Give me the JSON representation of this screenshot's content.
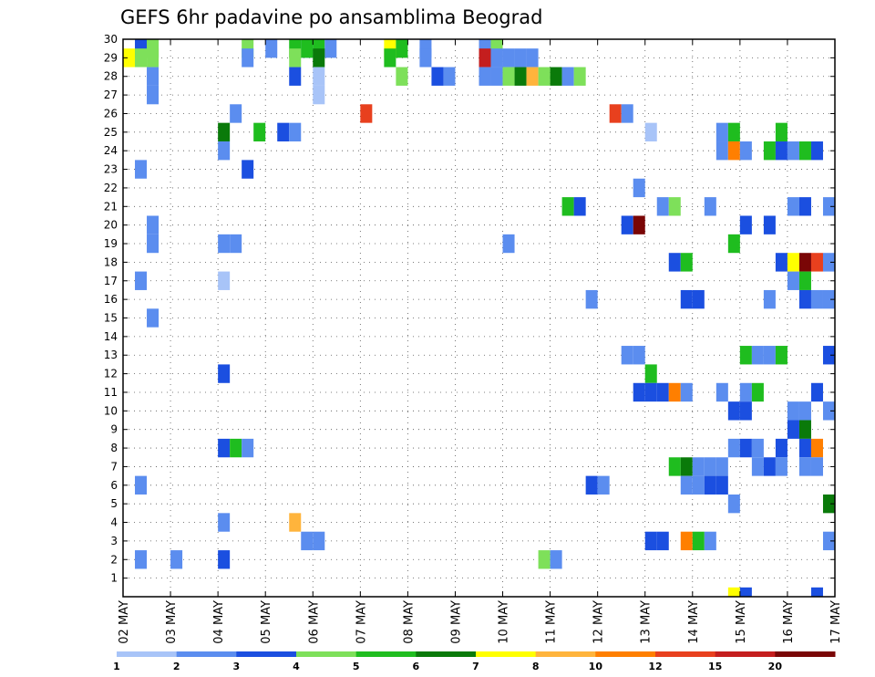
{
  "chart_data": {
    "type": "heatmap",
    "title": "GEFS 6hr padavine po ansamblima Beograd",
    "x_tick_labels": [
      "02 MAY",
      "03 MAY",
      "04 MAY",
      "05 MAY",
      "06 MAY",
      "07 MAY",
      "08 MAY",
      "09 MAY",
      "10 MAY",
      "11 MAY",
      "12 MAY",
      "13 MAY",
      "14 MAY",
      "15 MAY",
      "16 MAY",
      "17 MAY"
    ],
    "y_tick_labels": [
      "1",
      "2",
      "3",
      "4",
      "5",
      "6",
      "7",
      "8",
      "9",
      "10",
      "11",
      "12",
      "13",
      "14",
      "15",
      "16",
      "17",
      "18",
      "19",
      "20",
      "21",
      "22",
      "23",
      "24",
      "25",
      "26",
      "27",
      "28",
      "29",
      "30"
    ],
    "xlim_steps": [
      0,
      60
    ],
    "ylim": [
      0,
      30
    ],
    "grid": true,
    "colorbar": {
      "levels": [
        1,
        2,
        3,
        4,
        5,
        6,
        7,
        8,
        10,
        12,
        15,
        20
      ],
      "tick_labels": [
        "1",
        "2",
        "3",
        "4",
        "5",
        "6",
        "7",
        "8",
        "10",
        "12",
        "15",
        "20"
      ],
      "colors": [
        "#a8c4f8",
        "#5b8def",
        "#1b4fe0",
        "#7ee05a",
        "#1fbd1f",
        "#0a7a0a",
        "#ffff00",
        "#ffb43c",
        "#ff7f00",
        "#e8401e",
        "#c41e1e",
        "#7a0606"
      ]
    },
    "cells": [
      [
        1,
        30,
        2
      ],
      [
        2,
        30,
        4
      ],
      [
        0,
        29,
        6
      ],
      [
        1,
        29,
        3
      ],
      [
        2,
        29,
        3
      ],
      [
        2,
        30,
        3
      ],
      [
        22,
        30,
        6
      ],
      [
        23,
        30,
        4
      ],
      [
        22,
        29,
        4
      ],
      [
        25,
        30,
        1
      ],
      [
        25,
        29,
        1
      ],
      [
        27,
        28,
        1
      ],
      [
        2,
        28,
        1
      ],
      [
        2,
        27,
        1
      ],
      [
        10,
        30,
        3
      ],
      [
        10,
        29,
        1
      ],
      [
        15,
        30,
        1
      ],
      [
        16,
        30,
        4
      ],
      [
        14,
        30,
        4
      ],
      [
        15,
        30,
        4
      ],
      [
        17,
        30,
        1
      ],
      [
        12,
        30,
        1
      ],
      [
        14,
        29,
        3
      ],
      [
        16,
        29,
        5
      ],
      [
        14,
        28,
        2
      ],
      [
        23,
        28,
        3
      ],
      [
        26,
        28,
        2
      ],
      [
        16,
        28,
        0
      ],
      [
        16,
        27,
        0
      ],
      [
        20,
        26,
        9
      ],
      [
        30,
        30,
        1
      ],
      [
        31,
        30,
        3
      ],
      [
        30,
        29,
        10
      ],
      [
        31,
        29,
        1
      ],
      [
        32,
        29,
        1
      ],
      [
        33,
        29,
        1
      ],
      [
        34,
        29,
        1
      ],
      [
        30,
        28,
        1
      ],
      [
        31,
        28,
        1
      ],
      [
        32,
        28,
        3
      ],
      [
        33,
        28,
        5
      ],
      [
        34,
        28,
        7
      ],
      [
        35,
        28,
        3
      ],
      [
        36,
        28,
        5
      ],
      [
        37,
        28,
        1
      ],
      [
        38,
        28,
        3
      ],
      [
        9,
        26,
        1
      ],
      [
        41,
        26,
        9
      ],
      [
        42,
        26,
        1
      ],
      [
        8,
        25,
        5
      ],
      [
        11,
        25,
        4
      ],
      [
        13,
        25,
        2
      ],
      [
        14,
        25,
        1
      ],
      [
        44,
        25,
        0
      ],
      [
        8,
        24,
        1
      ],
      [
        50,
        25,
        1
      ],
      [
        51,
        25,
        4
      ],
      [
        55,
        25,
        4
      ],
      [
        50,
        24,
        1
      ],
      [
        51,
        24,
        8
      ],
      [
        52,
        24,
        1
      ],
      [
        54,
        24,
        4
      ],
      [
        55,
        24,
        2
      ],
      [
        56,
        24,
        1
      ],
      [
        57,
        24,
        4
      ],
      [
        58,
        24,
        2
      ],
      [
        1,
        23,
        1
      ],
      [
        10,
        23,
        2
      ],
      [
        43,
        22,
        1
      ],
      [
        37,
        21,
        4
      ],
      [
        38,
        21,
        2
      ],
      [
        45,
        21,
        1
      ],
      [
        46,
        21,
        3
      ],
      [
        49,
        21,
        1
      ],
      [
        56,
        21,
        1
      ],
      [
        57,
        21,
        2
      ],
      [
        59,
        21,
        1
      ],
      [
        2,
        20,
        1
      ],
      [
        42,
        20,
        2
      ],
      [
        43,
        20,
        11
      ],
      [
        52,
        20,
        2
      ],
      [
        54,
        20,
        2
      ],
      [
        2,
        19,
        1
      ],
      [
        8,
        19,
        1
      ],
      [
        9,
        19,
        1
      ],
      [
        32,
        19,
        1
      ],
      [
        51,
        19,
        4
      ],
      [
        46,
        18,
        2
      ],
      [
        47,
        18,
        4
      ],
      [
        8,
        17,
        0
      ],
      [
        55,
        18,
        2
      ],
      [
        56,
        18,
        6
      ],
      [
        57,
        18,
        11
      ],
      [
        58,
        18,
        9
      ],
      [
        59,
        18,
        1
      ],
      [
        1,
        17,
        1
      ],
      [
        39,
        16,
        1
      ],
      [
        56,
        17,
        1
      ],
      [
        57,
        17,
        4
      ],
      [
        47,
        16,
        2
      ],
      [
        48,
        16,
        2
      ],
      [
        54,
        16,
        1
      ],
      [
        57,
        16,
        2
      ],
      [
        58,
        16,
        1
      ],
      [
        59,
        16,
        1
      ],
      [
        2,
        15,
        1
      ],
      [
        42,
        13,
        1
      ],
      [
        43,
        13,
        1
      ],
      [
        44,
        12,
        4
      ],
      [
        52,
        13,
        4
      ],
      [
        53,
        13,
        1
      ],
      [
        54,
        13,
        1
      ],
      [
        55,
        13,
        4
      ],
      [
        59,
        13,
        2
      ],
      [
        8,
        12,
        2
      ],
      [
        43,
        11,
        2
      ],
      [
        44,
        11,
        2
      ],
      [
        45,
        11,
        2
      ],
      [
        46,
        11,
        8
      ],
      [
        47,
        11,
        1
      ],
      [
        50,
        11,
        1
      ],
      [
        52,
        11,
        1
      ],
      [
        53,
        11,
        4
      ],
      [
        58,
        11,
        2
      ],
      [
        51,
        10,
        2
      ],
      [
        52,
        10,
        2
      ],
      [
        56,
        10,
        1
      ],
      [
        57,
        10,
        1
      ],
      [
        59,
        10,
        1
      ],
      [
        56,
        9,
        2
      ],
      [
        57,
        9,
        5
      ],
      [
        8,
        8,
        2
      ],
      [
        9,
        8,
        4
      ],
      [
        10,
        8,
        1
      ],
      [
        51,
        8,
        1
      ],
      [
        52,
        8,
        2
      ],
      [
        53,
        8,
        1
      ],
      [
        55,
        8,
        2
      ],
      [
        57,
        8,
        2
      ],
      [
        58,
        8,
        8
      ],
      [
        46,
        7,
        4
      ],
      [
        47,
        7,
        5
      ],
      [
        48,
        7,
        1
      ],
      [
        49,
        7,
        1
      ],
      [
        50,
        7,
        1
      ],
      [
        53,
        7,
        1
      ],
      [
        54,
        7,
        2
      ],
      [
        55,
        7,
        1
      ],
      [
        57,
        7,
        1
      ],
      [
        58,
        7,
        1
      ],
      [
        1,
        6,
        1
      ],
      [
        39,
        6,
        2
      ],
      [
        40,
        6,
        1
      ],
      [
        47,
        6,
        1
      ],
      [
        48,
        6,
        1
      ],
      [
        49,
        6,
        2
      ],
      [
        50,
        6,
        2
      ],
      [
        51,
        5,
        1
      ],
      [
        59,
        5,
        5
      ],
      [
        8,
        4,
        1
      ],
      [
        14,
        4,
        7
      ],
      [
        15,
        3,
        1
      ],
      [
        16,
        3,
        1
      ],
      [
        44,
        3,
        2
      ],
      [
        45,
        3,
        2
      ],
      [
        47,
        3,
        8
      ],
      [
        48,
        3,
        4
      ],
      [
        49,
        3,
        1
      ],
      [
        59,
        3,
        1
      ],
      [
        1,
        2,
        1
      ],
      [
        4,
        2,
        1
      ],
      [
        8,
        2,
        2
      ],
      [
        35,
        2,
        3
      ],
      [
        36,
        2,
        1
      ],
      [
        51,
        0,
        6
      ],
      [
        52,
        0,
        2
      ],
      [
        58,
        0,
        2
      ]
    ]
  }
}
